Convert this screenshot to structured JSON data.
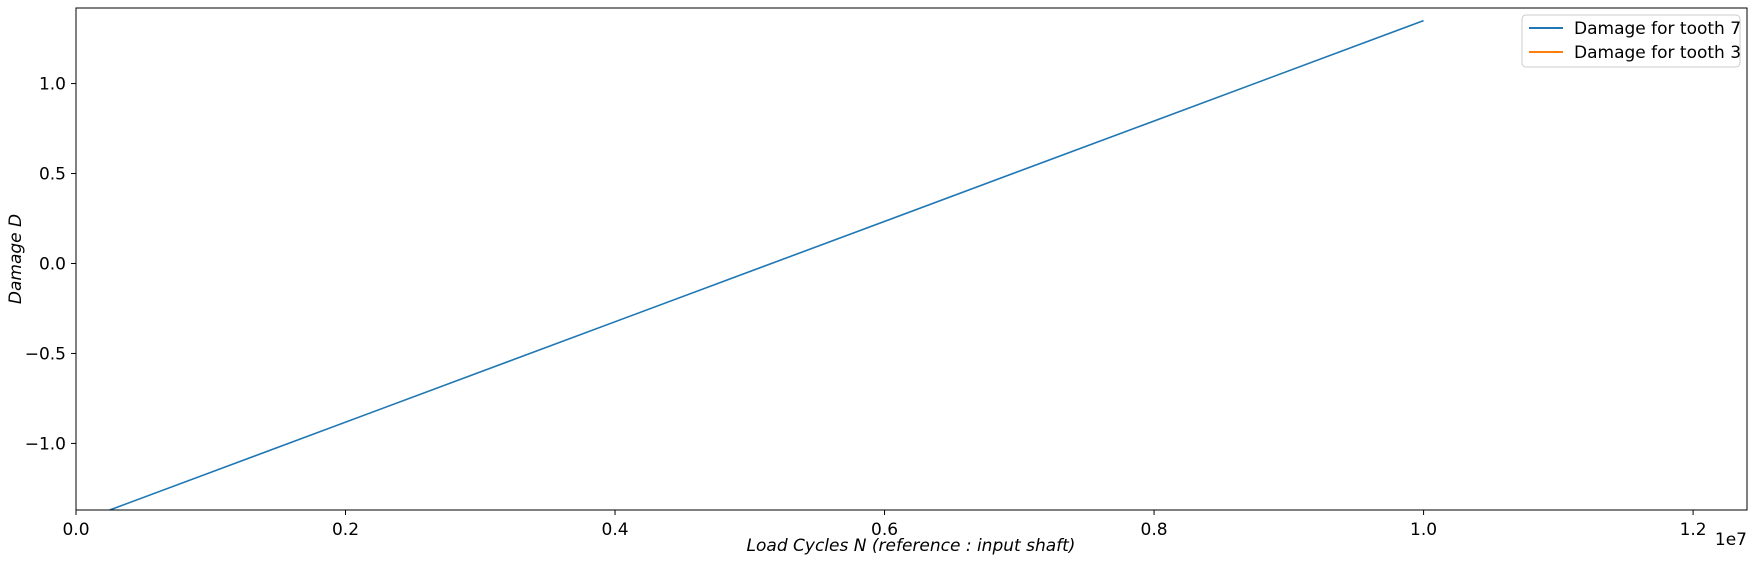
{
  "chart_data": {
    "type": "line",
    "xlabel": "Load Cycles N (reference :  input shaft)",
    "ylabel": "Damage D",
    "x_offset_text": "1e7",
    "xlim": [
      0,
      12400000
    ],
    "ylim": [
      -1.37,
      1.42
    ],
    "xticks": [
      0,
      2000000,
      4000000,
      6000000,
      8000000,
      10000000,
      12000000
    ],
    "xtick_labels": [
      "0.0",
      "0.2",
      "0.4",
      "0.6",
      "0.8",
      "1.0",
      "1.2"
    ],
    "yticks": [
      -1.0,
      -0.5,
      0.0,
      0.5,
      1.0
    ],
    "ytick_labels": [
      "−1.0",
      "−0.5",
      "0.0",
      "0.5",
      "1.0"
    ],
    "grid": false,
    "legend_position": "top-right",
    "series": [
      {
        "name": "Damage for tooth 7",
        "color": "#1f77b4",
        "x": [
          250000,
          10000000
        ],
        "y": [
          -1.37,
          1.35
        ]
      },
      {
        "name": "Damage for tooth 3",
        "color": "#ff7f0e",
        "x": [],
        "y": []
      }
    ]
  }
}
